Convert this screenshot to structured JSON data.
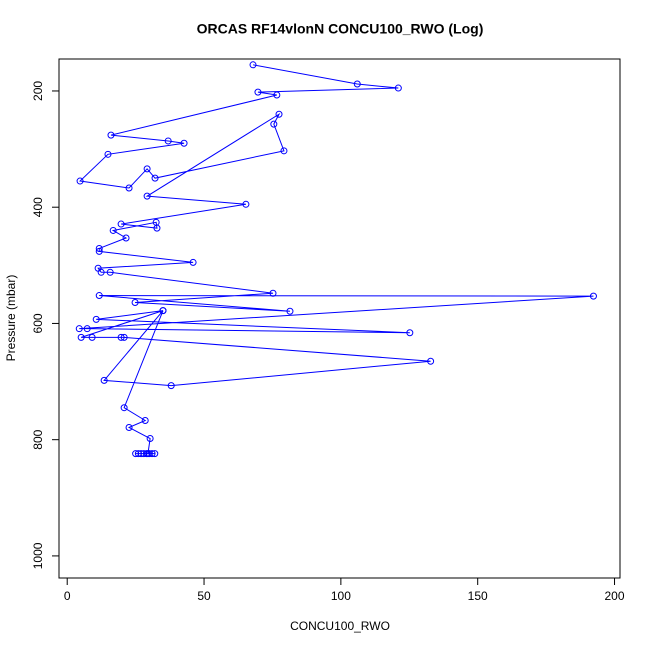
{
  "chart_data": {
    "type": "line",
    "title": "ORCAS RF14vlonN CONCU100_RWO (Log)",
    "x_label": "CONCU100_RWO",
    "y_label": "Pressure (mbar)",
    "color": "#0000ff",
    "xlim": [
      -3,
      202
    ],
    "ylim": [
      1038,
      145
    ],
    "xticks": [
      0,
      50,
      100,
      150,
      200
    ],
    "yticks": [
      200,
      400,
      600,
      800,
      1000
    ],
    "x": [
      67.9,
      106,
      121,
      69.7,
      76.6,
      16,
      36.9,
      42.7,
      14.9,
      4.7,
      22.6,
      29.2,
      32.1,
      79.2,
      75.5,
      77.4,
      29.2,
      65.3,
      19.7,
      32.8,
      32.5,
      16.8,
      21.5,
      11.7,
      11.7,
      46,
      11.3,
      12.4,
      15.7,
      75.2,
      24.8,
      81.4,
      11.7,
      192.3,
      4.4,
      7.3,
      125.2,
      10.6,
      35,
      5.1,
      9.1,
      19.7,
      20.8,
      132.8,
      38,
      13.5,
      35,
      20.8,
      28.5,
      22.6,
      30.3,
      29.5,
      25,
      26,
      27,
      28,
      29,
      30,
      31,
      32
    ],
    "values": [
      155,
      188,
      195,
      202,
      207,
      276,
      286,
      290,
      309,
      355,
      367,
      334,
      350,
      303,
      257,
      240,
      381,
      395,
      429,
      436,
      426,
      440,
      453,
      471,
      476,
      495,
      505,
      512,
      512,
      548,
      564,
      579,
      552,
      553,
      609,
      609,
      616,
      593,
      578,
      624,
      624,
      624,
      624,
      665,
      707,
      698,
      578,
      745,
      767,
      779,
      798,
      824,
      824,
      824,
      824,
      824,
      824,
      824,
      824,
      824
    ]
  }
}
